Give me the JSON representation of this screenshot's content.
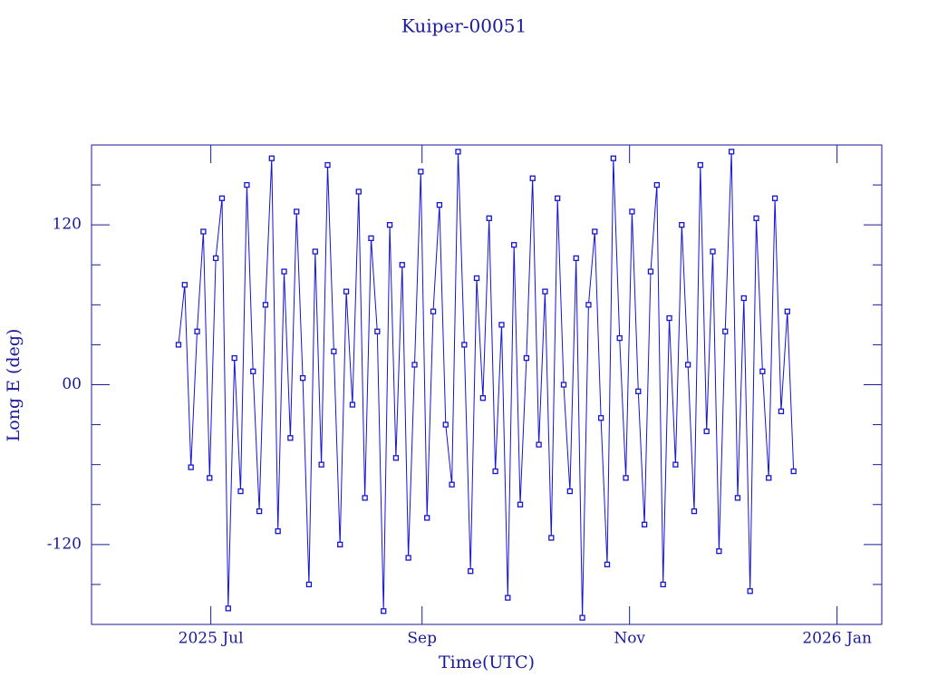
{
  "chart_data": {
    "type": "line",
    "title": "Kuiper-00051",
    "x_label": "Time(UTC)",
    "y_label": "Long E (deg)",
    "x": [
      2025.47,
      2025.475,
      2025.48,
      2025.485,
      2025.49,
      2025.495,
      2025.5,
      2025.505,
      2025.51,
      2025.515,
      2025.52,
      2025.525,
      2025.53,
      2025.535,
      2025.54,
      2025.545,
      2025.55,
      2025.555,
      2025.56,
      2025.565,
      2025.57,
      2025.575,
      2025.58,
      2025.585,
      2025.59,
      2025.595,
      2025.6,
      2025.605,
      2025.61,
      2025.615,
      2025.62,
      2025.625,
      2025.63,
      2025.635,
      2025.64,
      2025.645,
      2025.65,
      2025.655,
      2025.66,
      2025.665,
      2025.67,
      2025.675,
      2025.68,
      2025.685,
      2025.69,
      2025.695,
      2025.7,
      2025.705,
      2025.71,
      2025.715,
      2025.72,
      2025.725,
      2025.73,
      2025.735,
      2025.74,
      2025.745,
      2025.75,
      2025.755,
      2025.76,
      2025.765,
      2025.77,
      2025.775,
      2025.78,
      2025.785,
      2025.79,
      2025.795,
      2025.8,
      2025.805,
      2025.81,
      2025.815,
      2025.82,
      2025.825,
      2025.83,
      2025.835,
      2025.84,
      2025.845,
      2025.85,
      2025.855,
      2025.86,
      2025.865,
      2025.87,
      2025.875,
      2025.88,
      2025.885,
      2025.89,
      2025.895,
      2025.9,
      2025.905,
      2025.91,
      2025.915,
      2025.92,
      2025.925,
      2025.93,
      2025.935,
      2025.94,
      2025.945,
      2025.95,
      2025.955,
      2025.96,
      2025.965
    ],
    "values": [
      30,
      75,
      -62,
      40,
      115,
      -70,
      95,
      140,
      -168,
      20,
      -80,
      150,
      10,
      -95,
      60,
      170,
      -110,
      85,
      -40,
      130,
      5,
      -150,
      100,
      -60,
      165,
      25,
      -120,
      70,
      -15,
      145,
      -85,
      110,
      40,
      -170,
      120,
      -55,
      90,
      -130,
      15,
      160,
      -100,
      55,
      135,
      -30,
      -75,
      175,
      30,
      -140,
      80,
      -10,
      125,
      -65,
      45,
      -160,
      105,
      -90,
      20,
      155,
      -45,
      70,
      -115,
      140,
      0,
      -80,
      95,
      -175,
      60,
      115,
      -25,
      -135,
      170,
      35,
      -70,
      130,
      -5,
      -105,
      85,
      150,
      -150,
      50,
      -60,
      120,
      15,
      -95,
      165,
      -35,
      100,
      -125,
      40,
      175,
      -85,
      65,
      -155,
      125,
      10,
      -70,
      140,
      -20,
      55,
      -65
    ],
    "color": "#1414d2",
    "axis_color": "#1a1a9a",
    "xlim": [
      2025.4,
      2026.036
    ],
    "xticks": [
      {
        "value": 2025.496,
        "label": "2025 Jul"
      },
      {
        "value": 2025.666,
        "label": "Sep"
      },
      {
        "value": 2025.833,
        "label": "Nov"
      },
      {
        "value": 2026.0,
        "label": "2026 Jan"
      }
    ],
    "ylim": [
      -180,
      180
    ],
    "yticks": [
      -120,
      {
        "value": 0,
        "label": "00"
      },
      120
    ],
    "yminorticks": [
      -150,
      -90,
      -60,
      -30,
      30,
      60,
      90,
      150
    ]
  }
}
